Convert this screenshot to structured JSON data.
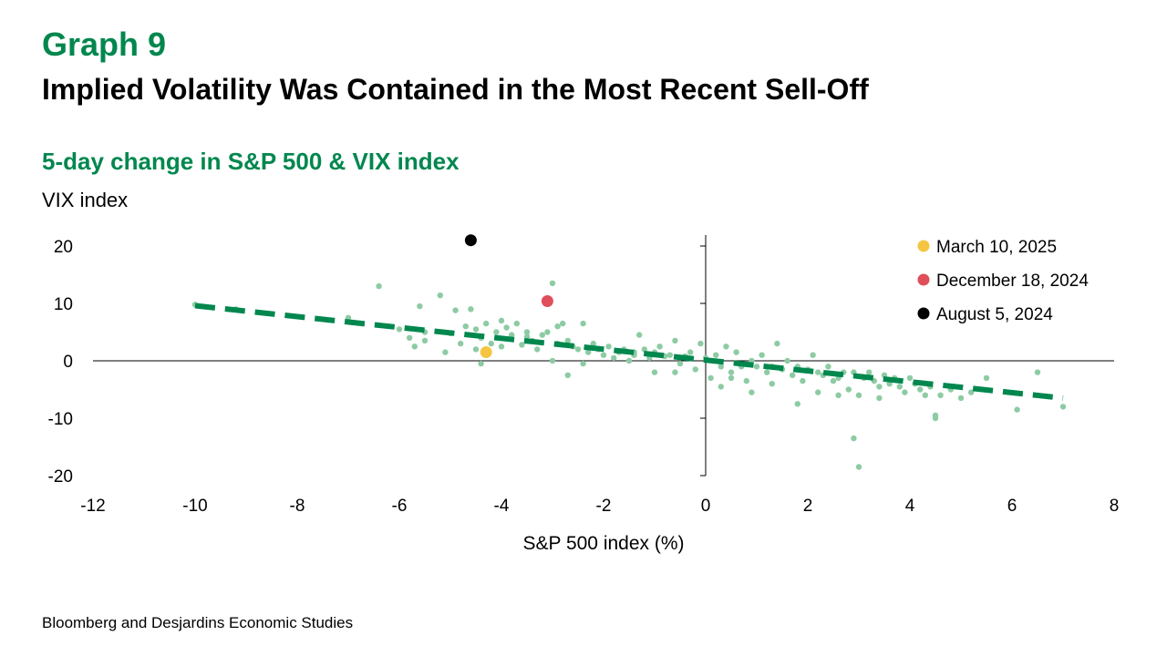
{
  "header": {
    "graph_label": "Graph 9",
    "title": "Implied Volatility Was Contained in the Most Recent Sell-Off",
    "subtitle": "5-day change in S&P 500 & VIX index",
    "y_unit": "VIX index"
  },
  "footer": {
    "source": "Bloomberg and Desjardins Economic Studies"
  },
  "colors": {
    "brand_green": "#00874E",
    "scatter": "#8DCBA3",
    "trend": "#00874E",
    "march": "#F5C542",
    "december": "#E04E5A",
    "august": "#000000"
  },
  "chart_data": {
    "type": "scatter",
    "title": "5-day change in S&P 500 & VIX index",
    "xlabel": "S&P 500 index (%)",
    "ylabel": "VIX index",
    "xlim": [
      -12,
      8
    ],
    "ylim": [
      -20,
      20
    ],
    "x_ticks": [
      "-12",
      "-10",
      "-8",
      "-6",
      "-4",
      "-2",
      "0",
      "2",
      "4",
      "6",
      "8"
    ],
    "y_ticks": [
      "20",
      "10",
      "0",
      "-10",
      "-20"
    ],
    "trendline": {
      "style": "dashed",
      "from": [
        -10,
        9.6
      ],
      "to": [
        7,
        -6.5
      ]
    },
    "highlights": [
      {
        "name": "March 10, 2025",
        "x": -4.3,
        "y": 1.5,
        "color": "#F5C542"
      },
      {
        "name": "December 18, 2024",
        "x": -3.1,
        "y": 10.4,
        "color": "#E04E5A"
      },
      {
        "name": "August 5, 2024",
        "x": -4.6,
        "y": 21.0,
        "color": "#000000"
      }
    ],
    "scatter": {
      "x": [
        -10.0,
        -9.2,
        -7.0,
        -6.4,
        -6.0,
        -5.8,
        -5.7,
        -5.6,
        -5.5,
        -5.2,
        -5.1,
        -5.0,
        -4.9,
        -4.8,
        -4.7,
        -4.6,
        -4.5,
        -4.5,
        -4.4,
        -4.3,
        -4.3,
        -4.2,
        -4.1,
        -4.0,
        -3.9,
        -3.8,
        -3.7,
        -3.6,
        -3.5,
        -3.5,
        -3.4,
        -3.3,
        -3.2,
        -3.1,
        -3.0,
        -2.9,
        -2.9,
        -2.8,
        -2.7,
        -2.6,
        -2.5,
        -2.4,
        -2.3,
        -2.2,
        -2.1,
        -2.0,
        -1.9,
        -1.8,
        -1.7,
        -1.6,
        -1.5,
        -1.4,
        -1.3,
        -1.2,
        -1.1,
        -1.0,
        -0.9,
        -0.8,
        -0.7,
        -0.6,
        -0.5,
        -0.4,
        -0.3,
        -0.2,
        -0.1,
        0.0,
        0.1,
        0.2,
        0.3,
        0.4,
        0.5,
        0.6,
        0.7,
        0.8,
        0.9,
        1.0,
        1.1,
        1.2,
        1.3,
        1.4,
        1.5,
        1.6,
        1.7,
        1.8,
        1.9,
        2.0,
        2.1,
        2.2,
        2.3,
        2.4,
        2.5,
        2.6,
        2.7,
        2.8,
        2.9,
        3.0,
        3.1,
        3.2,
        3.3,
        3.4,
        3.5,
        3.6,
        3.7,
        3.8,
        3.9,
        4.0,
        4.1,
        4.2,
        4.3,
        4.4,
        4.5,
        4.6,
        4.8,
        5.0,
        5.2,
        5.5,
        6.1,
        6.5,
        7.0,
        -4.4,
        -3.0,
        -2.7,
        -1.4,
        -0.6,
        0.3,
        0.9,
        1.8,
        2.6,
        2.9,
        3.0,
        4.5,
        -5.5,
        -4.0,
        -2.4,
        -1.0,
        0.5,
        1.3,
        2.2,
        3.4
      ],
      "y": [
        9.8,
        9.0,
        7.5,
        13.0,
        5.5,
        4.0,
        2.5,
        9.5,
        3.5,
        11.4,
        1.5,
        4.8,
        8.8,
        3.0,
        6.0,
        9.0,
        5.5,
        2.0,
        4.0,
        6.5,
        1.0,
        3.0,
        5.0,
        7.0,
        5.8,
        4.5,
        6.5,
        2.8,
        5.0,
        4.2,
        3.5,
        2.0,
        4.5,
        5.0,
        13.5,
        6.0,
        3.0,
        6.5,
        3.5,
        2.5,
        2.0,
        6.5,
        1.5,
        3.0,
        2.0,
        1.0,
        2.5,
        0.5,
        1.5,
        2.0,
        0.0,
        1.5,
        4.5,
        2.0,
        0.5,
        1.5,
        2.5,
        0.8,
        1.0,
        3.5,
        -0.5,
        0.8,
        1.5,
        -1.5,
        3.0,
        0.5,
        -3.0,
        1.0,
        -1.0,
        2.5,
        -2.0,
        1.5,
        -1.0,
        -3.5,
        0.0,
        -1.0,
        1.0,
        -2.0,
        -1.0,
        3.0,
        -1.5,
        0.0,
        -2.5,
        -1.0,
        -3.5,
        -1.5,
        1.0,
        -2.0,
        -2.5,
        -1.0,
        -3.5,
        -3.0,
        -2.0,
        -5.0,
        -2.0,
        -6.0,
        -3.0,
        -2.0,
        -3.5,
        -4.5,
        -2.5,
        -4.0,
        -3.0,
        -4.5,
        -5.5,
        -3.0,
        -4.0,
        -5.0,
        -6.0,
        -4.5,
        -10.0,
        -6.0,
        -5.0,
        -6.5,
        -5.5,
        -3.0,
        -8.5,
        -2.0,
        -8.0,
        -0.5,
        0.0,
        -2.5,
        1.0,
        -2.0,
        -4.5,
        -5.5,
        -7.5,
        -6.0,
        -13.5,
        -18.5,
        -9.5,
        5.0,
        2.5,
        -0.5,
        -2.0,
        -3.0,
        -4.0,
        -5.5,
        -6.5
      ]
    }
  }
}
